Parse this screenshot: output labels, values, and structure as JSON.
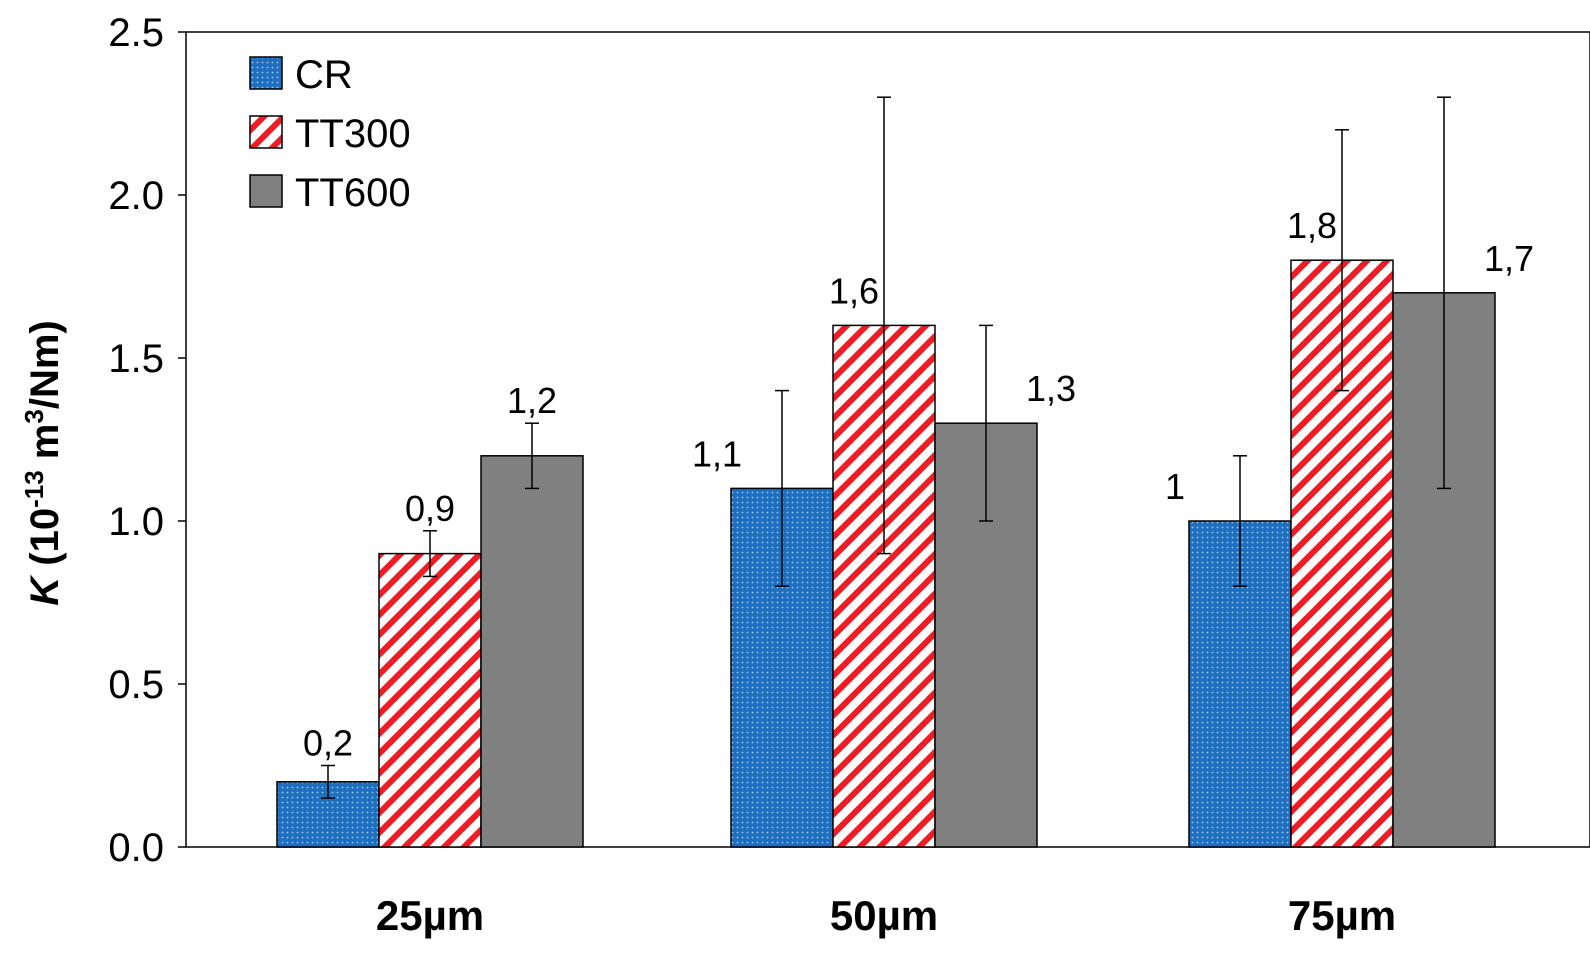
{
  "chart_data": {
    "type": "bar",
    "title": "",
    "xlabel": "",
    "ylabel": {
      "symbol": "K",
      "prefix": " (10",
      "exp": "-13",
      "mid": " m",
      "unit_exp": "3",
      "suffix": "/Nm)"
    },
    "ylim": [
      0,
      2.5
    ],
    "yticks": [
      "0.0",
      "0.5",
      "1.0",
      "1.5",
      "2.0",
      "2.5"
    ],
    "ytick_values": [
      0,
      0.5,
      1.0,
      1.5,
      2.0,
      2.5
    ],
    "categories": [
      "25µm",
      "50µm",
      "75µm"
    ],
    "legend_position": "top-left",
    "grid": false,
    "series": [
      {
        "name": "CR",
        "pattern": "dots",
        "color": "#1f6fc0",
        "values": [
          0.2,
          1.1,
          1.0
        ],
        "labels": [
          "0,2",
          "1,1",
          "1"
        ],
        "err_low": [
          0.15,
          0.8,
          0.8
        ],
        "err_high": [
          0.25,
          1.4,
          1.2
        ]
      },
      {
        "name": "TT300",
        "pattern": "stripes",
        "color": "#ee1c24",
        "values": [
          0.9,
          1.6,
          1.8
        ],
        "labels": [
          "0,9",
          "1,6",
          "1,8"
        ],
        "err_low": [
          0.83,
          0.9,
          1.4
        ],
        "err_high": [
          0.97,
          2.3,
          2.2
        ]
      },
      {
        "name": "TT600",
        "pattern": "solid",
        "color": "#808080",
        "values": [
          1.2,
          1.3,
          1.7
        ],
        "labels": [
          "1,2",
          "1,3",
          "1,7"
        ],
        "err_low": [
          1.1,
          1.0,
          1.1
        ],
        "err_high": [
          1.3,
          1.6,
          2.3
        ]
      }
    ]
  }
}
